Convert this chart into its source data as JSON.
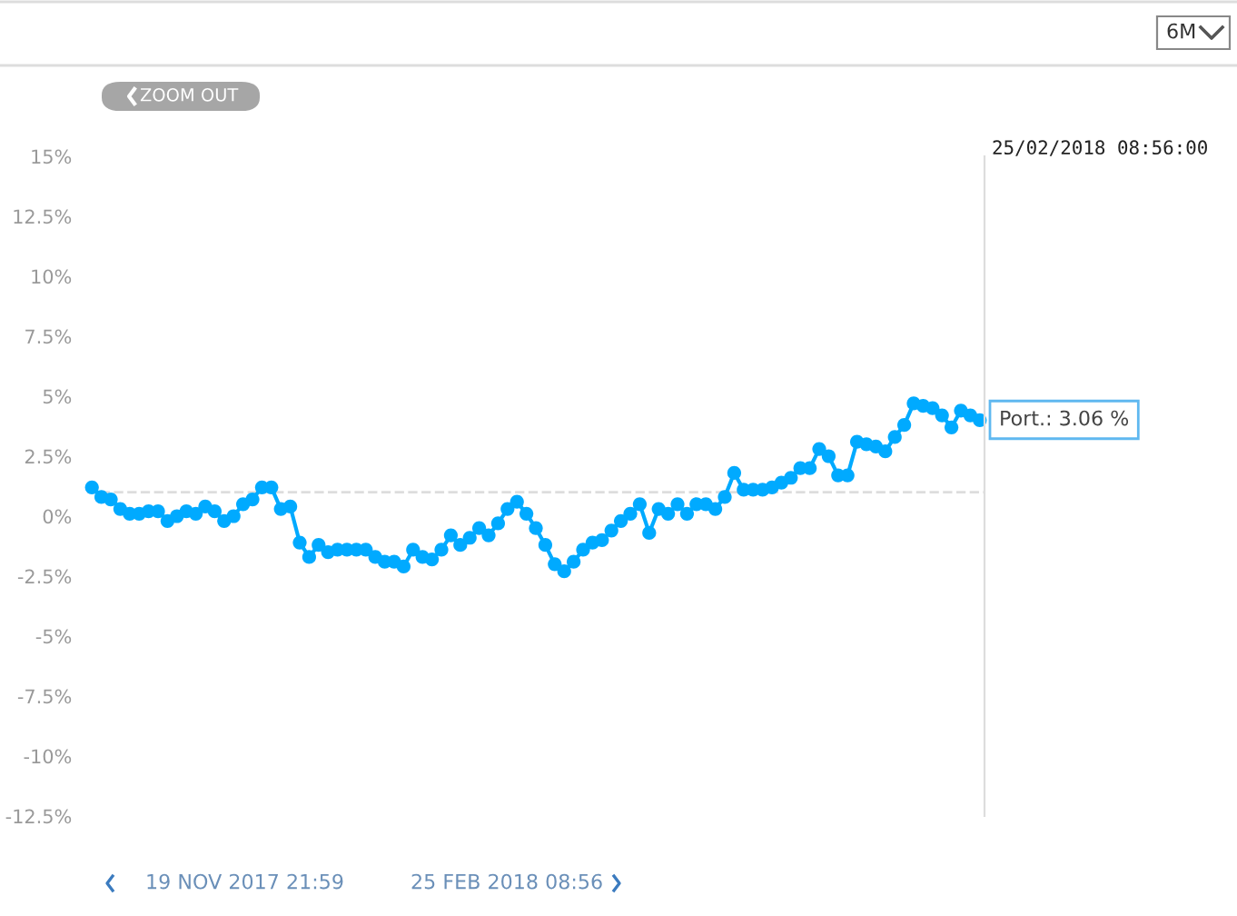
{
  "chart_data": {
    "type": "line",
    "categories": [
      null,
      null,
      null,
      null,
      null,
      null,
      null,
      null,
      null,
      null,
      null,
      null,
      null,
      null,
      null,
      null,
      null,
      null,
      null,
      null,
      null,
      null,
      null,
      null,
      null,
      null,
      null,
      null,
      null,
      null,
      null,
      null,
      null,
      null,
      null,
      null,
      null,
      null,
      null,
      null,
      null,
      null,
      null,
      null,
      null,
      null,
      null,
      null,
      null,
      null,
      null,
      null,
      null,
      null,
      null,
      null,
      null,
      null,
      null,
      null,
      null,
      null,
      null,
      null,
      null,
      null,
      null,
      null,
      null,
      null,
      null,
      null,
      null,
      null,
      null,
      null,
      null,
      null,
      null,
      null,
      null,
      null,
      null,
      null,
      null,
      null,
      null,
      null,
      null,
      null,
      null,
      null,
      null,
      null,
      null
    ],
    "series": [
      {
        "color": "#00aaff",
        "values": [
          1.2,
          0.8,
          0.7,
          0.3,
          0.1,
          0.1,
          0.2,
          0.2,
          -0.2,
          0.0,
          0.2,
          0.1,
          0.4,
          0.2,
          -0.2,
          0.0,
          0.5,
          0.7,
          1.2,
          1.2,
          0.3,
          0.4,
          -1.1,
          -1.7,
          -1.2,
          -1.5,
          -1.4,
          -1.4,
          -1.4,
          -1.4,
          -1.7,
          -1.9,
          -1.9,
          -2.1,
          -1.4,
          -1.7,
          -1.8,
          -1.4,
          -0.8,
          -1.2,
          -0.9,
          -0.5,
          -0.8,
          -0.3,
          0.3,
          0.6,
          0.1,
          -0.5,
          -1.2,
          -2.0,
          -2.3,
          -1.9,
          -1.4,
          -1.1,
          -1.0,
          -0.6,
          -0.2,
          0.1,
          0.5,
          -0.7,
          0.3,
          0.1,
          0.5,
          0.1,
          0.5,
          0.5,
          0.3,
          0.8,
          1.8,
          1.1,
          1.1,
          1.1,
          1.2,
          1.4,
          1.6,
          2.0,
          2.0,
          2.8,
          2.5,
          1.7,
          1.7,
          3.1,
          3.0,
          2.9,
          2.7,
          3.3,
          3.8,
          4.7,
          4.6,
          4.5,
          4.2,
          3.7,
          4.4,
          4.2,
          4.0
        ]
      }
    ],
    "ylim": [
      -12.5,
      15
    ],
    "yticks": [
      {
        "value": -12.5,
        "label": "-12.5%"
      },
      {
        "value": -10,
        "label": "-10%"
      },
      {
        "value": -7.5,
        "label": "-7.5%"
      },
      {
        "value": -5,
        "label": "-5%"
      },
      {
        "value": -2.5,
        "label": "-2.5%"
      },
      {
        "value": 0,
        "label": "0%"
      },
      {
        "value": 2.5,
        "label": "2.5%"
      },
      {
        "value": 5,
        "label": "5%"
      },
      {
        "value": 7.5,
        "label": "7.5%"
      },
      {
        "value": 10,
        "label": "10%"
      },
      {
        "value": 12.5,
        "label": "12.5%"
      },
      {
        "value": 15,
        "label": "15%"
      }
    ],
    "tick_labels": "y",
    "grid": false,
    "legend": false,
    "marker": "circle",
    "line_style": "solid",
    "ref_lines": [
      {
        "axis": "y",
        "value": 1,
        "color": "#dddddd",
        "line_style": "dashed"
      }
    ],
    "annotations": [
      "ZOOM OUT",
      "6M",
      "25/02/2018 08:56:00",
      "Port.: 3.06 %",
      "19 NOV 2017 21:59",
      "25 FEB 2018 08:56"
    ]
  }
}
